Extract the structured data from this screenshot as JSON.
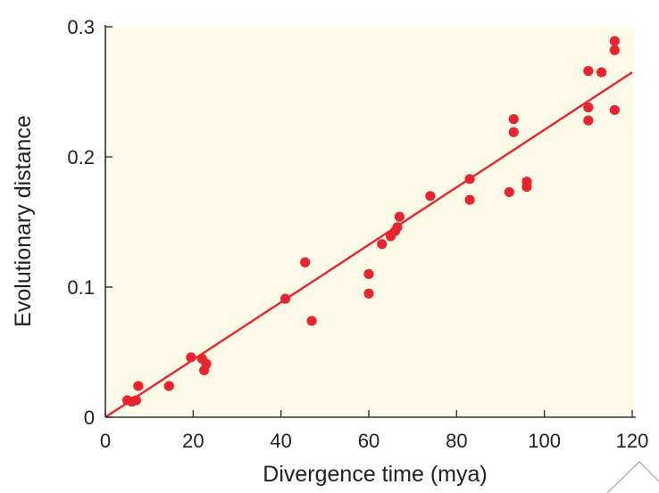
{
  "chart_data": {
    "type": "scatter",
    "title": "",
    "xlabel": "Divergence time (mya)",
    "ylabel": "Evolutionary distance",
    "xlim": [
      0,
      120
    ],
    "ylim": [
      0,
      0.3
    ],
    "x_ticks": [
      "0",
      "20",
      "40",
      "60",
      "80",
      "100",
      "120"
    ],
    "y_ticks": [
      "0",
      "0.1",
      "0.2",
      "0.3"
    ],
    "grid": false,
    "background_color": "#fdfbe8",
    "point_color": "#e8252e",
    "line_color": "#e8252e",
    "fit_line": {
      "x": [
        0,
        120
      ],
      "y": [
        0,
        0.265
      ]
    },
    "points": [
      {
        "x": 5,
        "y": 0.013
      },
      {
        "x": 6,
        "y": 0.012
      },
      {
        "x": 7,
        "y": 0.013
      },
      {
        "x": 7.5,
        "y": 0.024
      },
      {
        "x": 14.5,
        "y": 0.024
      },
      {
        "x": 19.5,
        "y": 0.046
      },
      {
        "x": 22,
        "y": 0.045
      },
      {
        "x": 22.5,
        "y": 0.036
      },
      {
        "x": 23,
        "y": 0.041
      },
      {
        "x": 41,
        "y": 0.091
      },
      {
        "x": 45.5,
        "y": 0.119
      },
      {
        "x": 47,
        "y": 0.074
      },
      {
        "x": 60,
        "y": 0.11
      },
      {
        "x": 60,
        "y": 0.095
      },
      {
        "x": 63,
        "y": 0.133
      },
      {
        "x": 65,
        "y": 0.139
      },
      {
        "x": 66,
        "y": 0.143
      },
      {
        "x": 66.5,
        "y": 0.146
      },
      {
        "x": 67,
        "y": 0.154
      },
      {
        "x": 74,
        "y": 0.17
      },
      {
        "x": 83,
        "y": 0.183
      },
      {
        "x": 83,
        "y": 0.167
      },
      {
        "x": 92,
        "y": 0.173
      },
      {
        "x": 93,
        "y": 0.229
      },
      {
        "x": 93,
        "y": 0.219
      },
      {
        "x": 96,
        "y": 0.177
      },
      {
        "x": 96,
        "y": 0.181
      },
      {
        "x": 110,
        "y": 0.266
      },
      {
        "x": 110,
        "y": 0.238
      },
      {
        "x": 110,
        "y": 0.228
      },
      {
        "x": 113,
        "y": 0.265
      },
      {
        "x": 116,
        "y": 0.289
      },
      {
        "x": 116,
        "y": 0.282
      },
      {
        "x": 116,
        "y": 0.236
      }
    ]
  }
}
